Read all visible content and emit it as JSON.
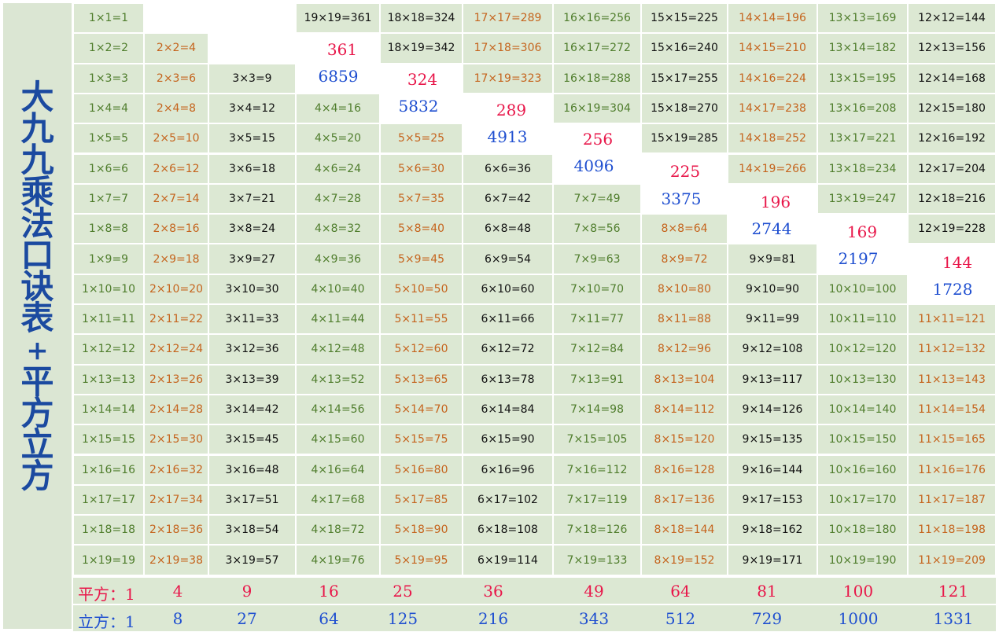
{
  "title": "大九九乘法口诀表+平方立方",
  "colors": {
    "green": "#4f7d2c",
    "orange": "#c5641d",
    "black": "#111111",
    "red": "#e8174a",
    "blue": "#1f4fd0"
  },
  "columns": [
    [
      "1×1=1",
      "1×2=2",
      "1×3=3",
      "1×4=4",
      "1×5=5",
      "1×6=6",
      "1×7=7",
      "1×8=8",
      "1×9=9",
      "1×10=10",
      "1×11=11",
      "1×12=12",
      "1×13=13",
      "1×14=14",
      "1×15=15",
      "1×16=16",
      "1×17=17",
      "1×18=18",
      "1×19=19"
    ],
    [
      "2×2=4",
      "2×3=6",
      "2×4=8",
      "2×5=10",
      "2×6=12",
      "2×7=14",
      "2×8=16",
      "2×9=18",
      "2×10=20",
      "2×11=22",
      "2×12=24",
      "2×13=26",
      "2×14=28",
      "2×15=30",
      "2×16=32",
      "2×17=34",
      "2×18=36",
      "2×19=38"
    ],
    [
      "3×3=9",
      "3×4=12",
      "3×5=15",
      "3×6=18",
      "3×7=21",
      "3×8=24",
      "3×9=27",
      "3×10=30",
      "3×11=33",
      "3×12=36",
      "3×13=39",
      "3×14=42",
      "3×15=45",
      "3×16=48",
      "3×17=51",
      "3×18=54",
      "3×19=57"
    ],
    [
      "19×19=361",
      "4×4=16",
      "4×5=20",
      "4×6=24",
      "4×7=28",
      "4×8=32",
      "4×9=36",
      "4×10=40",
      "4×11=44",
      "4×12=48",
      "4×13=52",
      "4×14=56",
      "4×15=60",
      "4×16=64",
      "4×17=68",
      "4×18=72",
      "4×19=76"
    ],
    [
      "18×18=324",
      "18×19=342",
      "5×5=25",
      "5×6=30",
      "5×7=35",
      "5×8=40",
      "5×9=45",
      "5×10=50",
      "5×11=55",
      "5×12=60",
      "5×13=65",
      "5×14=70",
      "5×15=75",
      "5×16=80",
      "5×17=85",
      "5×18=90",
      "5×19=95"
    ],
    [
      "17×17=289",
      "17×18=306",
      "17×19=323",
      "6×6=36",
      "6×7=42",
      "6×8=48",
      "6×9=54",
      "6×10=60",
      "6×11=66",
      "6×12=72",
      "6×13=78",
      "6×14=84",
      "6×15=90",
      "6×16=96",
      "6×17=102",
      "6×18=108",
      "6×19=114"
    ],
    [
      "16×16=256",
      "16×17=272",
      "16×18=288",
      "16×19=304",
      "7×7=49",
      "7×8=56",
      "7×9=63",
      "7×10=70",
      "7×11=77",
      "7×12=84",
      "7×13=91",
      "7×14=98",
      "7×15=105",
      "7×16=112",
      "7×17=119",
      "7×18=126",
      "7×19=133"
    ],
    [
      "15×15=225",
      "15×16=240",
      "15×17=255",
      "15×18=270",
      "15×19=285",
      "8×8=64",
      "8×9=72",
      "8×10=80",
      "8×11=88",
      "8×12=96",
      "8×13=104",
      "8×14=112",
      "8×15=120",
      "8×16=128",
      "8×17=136",
      "8×18=144",
      "8×19=152"
    ],
    [
      "14×14=196",
      "14×15=210",
      "14×16=224",
      "14×17=238",
      "14×18=252",
      "14×19=266",
      "9×9=81",
      "9×10=90",
      "9×11=99",
      "9×12=108",
      "9×13=117",
      "9×14=126",
      "9×15=135",
      "9×16=144",
      "9×17=153",
      "9×18=162",
      "9×19=171"
    ],
    [
      "13×13=169",
      "13×14=182",
      "13×15=195",
      "13×16=208",
      "13×17=221",
      "13×18=234",
      "13×19=247",
      "10×10=100",
      "10×11=110",
      "10×12=120",
      "10×13=130",
      "10×14=140",
      "10×15=150",
      "10×16=160",
      "10×17=170",
      "10×18=180",
      "10×19=190"
    ],
    [
      "12×12=144",
      "12×13=156",
      "12×14=168",
      "12×15=180",
      "12×16=192",
      "12×17=204",
      "12×18=216",
      "12×19=228",
      "11×11=121",
      "11×12=132",
      "11×13=143",
      "11×14=154",
      "11×15=165",
      "11×16=176",
      "11×17=187",
      "11×18=198",
      "11×19=209"
    ]
  ],
  "big_squares": [
    "361",
    "324",
    "289",
    "256",
    "225",
    "196",
    "169",
    "144"
  ],
  "big_cubes": [
    "6859",
    "5832",
    "4913",
    "4096",
    "3375",
    "2744",
    "2197",
    "1728"
  ],
  "squares_label": "平方：",
  "squares": [
    "1",
    "4",
    "9",
    "16",
    "25",
    "36",
    "49",
    "64",
    "81",
    "100",
    "121"
  ],
  "cubes_label": "立方：",
  "cubes": [
    "1",
    "8",
    "27",
    "64",
    "125",
    "216",
    "343",
    "512",
    "729",
    "1000",
    "1331"
  ]
}
